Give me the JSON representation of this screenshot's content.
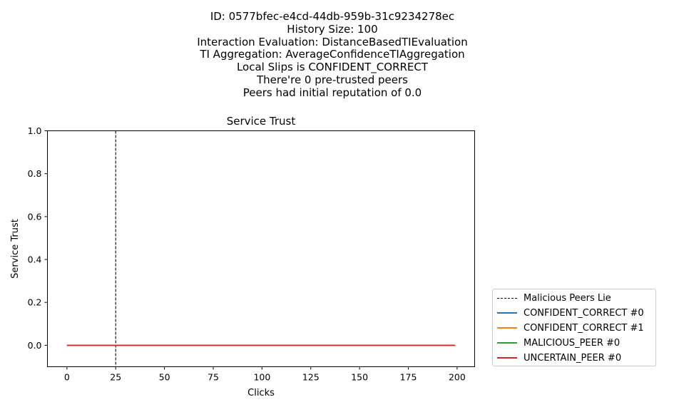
{
  "suptitle_lines": [
    "ID: 0577bfec-e4cd-44db-959b-31c9234278ec",
    "History Size: 100",
    "Interaction Evaluation: DistanceBasedTIEvaluation",
    "TI Aggregation: AverageConfidenceTIAggregation",
    "Local Slips is CONFIDENT_CORRECT",
    "There're 0 pre-trusted peers",
    "Peers had initial reputation of 0.0"
  ],
  "chart_data": {
    "type": "line",
    "title": "Service Trust",
    "xlabel": "Clicks",
    "ylabel": "Service Trust",
    "xlim": [
      -10,
      209
    ],
    "ylim": [
      -0.1,
      1.0
    ],
    "xticks": [
      0,
      25,
      50,
      75,
      100,
      125,
      150,
      175,
      200
    ],
    "yticks": [
      0.0,
      0.2,
      0.4,
      0.6,
      0.8,
      1.0
    ],
    "grid": false,
    "legend_placement": "outside-lower-right",
    "vline": {
      "name": "Malicious Peers Lie",
      "x": 25,
      "style": "dashed",
      "color": "#000000"
    },
    "series": [
      {
        "name": "CONFIDENT_CORRECT #0",
        "color": "#1f77b4",
        "x": [
          0,
          199
        ],
        "y": [
          0.0,
          0.0
        ]
      },
      {
        "name": "CONFIDENT_CORRECT #1",
        "color": "#ff7f0e",
        "x": [
          0,
          199
        ],
        "y": [
          0.0,
          0.0
        ]
      },
      {
        "name": "MALICIOUS_PEER #0",
        "color": "#2ca02c",
        "x": [
          0,
          199
        ],
        "y": [
          0.0,
          0.0
        ]
      },
      {
        "name": "UNCERTAIN_PEER #0",
        "color": "#d62728",
        "x": [
          0,
          199
        ],
        "y": [
          0.0,
          0.0
        ]
      }
    ]
  }
}
